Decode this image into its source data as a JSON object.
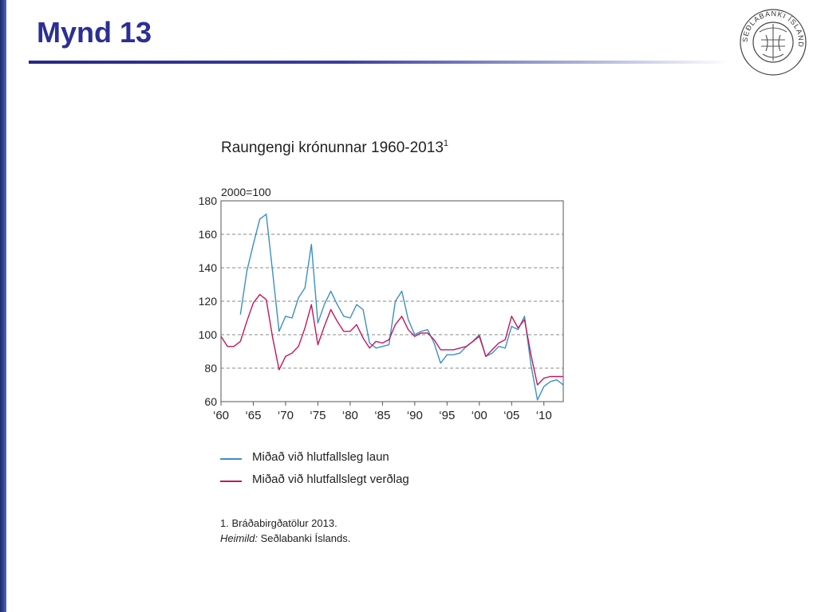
{
  "slide": {
    "title": "Mynd 13"
  },
  "logo": {
    "name": "seal-icon",
    "text": "SEÐLABANKI ÍSLANDS"
  },
  "chart_data": {
    "type": "line",
    "title": "Raungengi krónunnar 1960-2013",
    "title_superscript": "1",
    "ylabel": "2000=100",
    "ylim": [
      60,
      180
    ],
    "xlim": [
      1960,
      2013
    ],
    "y_ticks": [
      "60",
      "80",
      "100",
      "120",
      "140",
      "160",
      "180"
    ],
    "y_tick_values": [
      60,
      80,
      100,
      120,
      140,
      160,
      180
    ],
    "x_ticks": [
      "‘60",
      "‘65",
      "‘70",
      "‘75",
      "‘80",
      "‘85",
      "‘90",
      "‘95",
      "‘00",
      "‘05",
      "‘10"
    ],
    "x_tick_values": [
      1960,
      1965,
      1970,
      1975,
      1980,
      1985,
      1990,
      1995,
      2000,
      2005,
      2010
    ],
    "grid": "horizontal dashed",
    "legend_position": "below",
    "series": [
      {
        "name": "Miðað við hlutfallsleg laun",
        "color": "#3a8fc8",
        "x": [
          1963,
          1964,
          1965,
          1966,
          1967,
          1968,
          1969,
          1970,
          1971,
          1972,
          1973,
          1974,
          1975,
          1976,
          1977,
          1978,
          1979,
          1980,
          1981,
          1982,
          1983,
          1984,
          1985,
          1986,
          1987,
          1988,
          1989,
          1990,
          1991,
          1992,
          1993,
          1994,
          1995,
          1996,
          1997,
          1998,
          1999,
          2000,
          2001,
          2002,
          2003,
          2004,
          2005,
          2006,
          2007,
          2008,
          2009,
          2010,
          2011,
          2012,
          2013
        ],
        "y": [
          112,
          138,
          154,
          169,
          172,
          137,
          102,
          111,
          110,
          122,
          128,
          154,
          107,
          118,
          126,
          118,
          111,
          110,
          118,
          115,
          95,
          92,
          93,
          94,
          120,
          126,
          109,
          100,
          102,
          103,
          95,
          83,
          88,
          88,
          89,
          93,
          96,
          100,
          87,
          89,
          93,
          92,
          105,
          103,
          111,
          82,
          61,
          69,
          72,
          73,
          70
        ]
      },
      {
        "name": "Miðað við hlutfallslegt verðlag",
        "color": "#c2185b",
        "x": [
          1960,
          1961,
          1962,
          1963,
          1964,
          1965,
          1966,
          1967,
          1968,
          1969,
          1970,
          1971,
          1972,
          1973,
          1974,
          1975,
          1976,
          1977,
          1978,
          1979,
          1980,
          1981,
          1982,
          1983,
          1984,
          1985,
          1986,
          1987,
          1988,
          1989,
          1990,
          1991,
          1992,
          1993,
          1994,
          1995,
          1996,
          1997,
          1998,
          1999,
          2000,
          2001,
          2002,
          2003,
          2004,
          2005,
          2006,
          2007,
          2008,
          2009,
          2010,
          2011,
          2012,
          2013
        ],
        "y": [
          99,
          93,
          93,
          96,
          108,
          119,
          124,
          121,
          98,
          79,
          87,
          89,
          93,
          104,
          118,
          94,
          105,
          115,
          108,
          102,
          102,
          106,
          98,
          92,
          96,
          95,
          97,
          106,
          111,
          103,
          99,
          101,
          101,
          97,
          91,
          91,
          91,
          92,
          93,
          96,
          99,
          87,
          91,
          95,
          97,
          111,
          104,
          109,
          88,
          70,
          74,
          75,
          75,
          75
        ]
      }
    ],
    "footnote": "1. Bráðabirgðatölur 2013.",
    "source_label": "Heimild:",
    "source_text": " Seðlabanki Íslands."
  }
}
